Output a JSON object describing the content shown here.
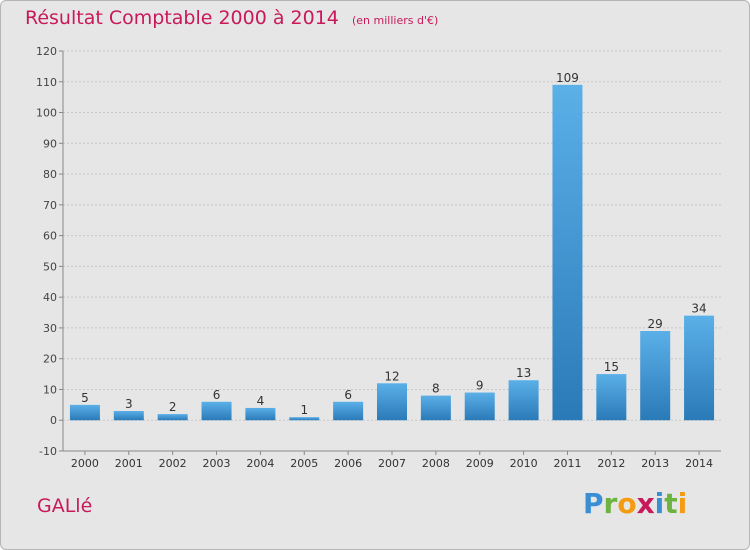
{
  "title": "Résultat Comptable 2000 à 2014",
  "unit": "(en milliers d'€)",
  "commune": "GALlé",
  "logo": {
    "letters": [
      "P",
      "r",
      "o",
      "x",
      "i",
      "t",
      "i"
    ],
    "colors": [
      "#3a8fd4",
      "#6cb33f",
      "#f39c12",
      "#c8195a",
      "#3a8fd4",
      "#6cb33f",
      "#f39c12"
    ]
  },
  "colors": {
    "title": "#c8195a",
    "bar_light": "#5bb0e8",
    "bar_dark": "#2a7ab8",
    "background": "#e6e6e6",
    "grid": "#c8c8c8"
  },
  "chart_data": {
    "type": "bar",
    "title": "Résultat Comptable 2000 à 2014",
    "subtitle": "(en milliers d'€)",
    "xlabel": "",
    "ylabel": "",
    "categories": [
      "2000",
      "2001",
      "2002",
      "2003",
      "2004",
      "2005",
      "2006",
      "2007",
      "2008",
      "2009",
      "2010",
      "2011",
      "2012",
      "2013",
      "2014"
    ],
    "values": [
      5,
      3,
      2,
      6,
      4,
      1,
      6,
      12,
      8,
      9,
      13,
      109,
      15,
      29,
      34
    ],
    "ylim": [
      -10,
      120
    ],
    "yticks": [
      -10,
      0,
      10,
      20,
      30,
      40,
      50,
      60,
      70,
      80,
      90,
      100,
      110,
      120
    ],
    "grid": true
  }
}
